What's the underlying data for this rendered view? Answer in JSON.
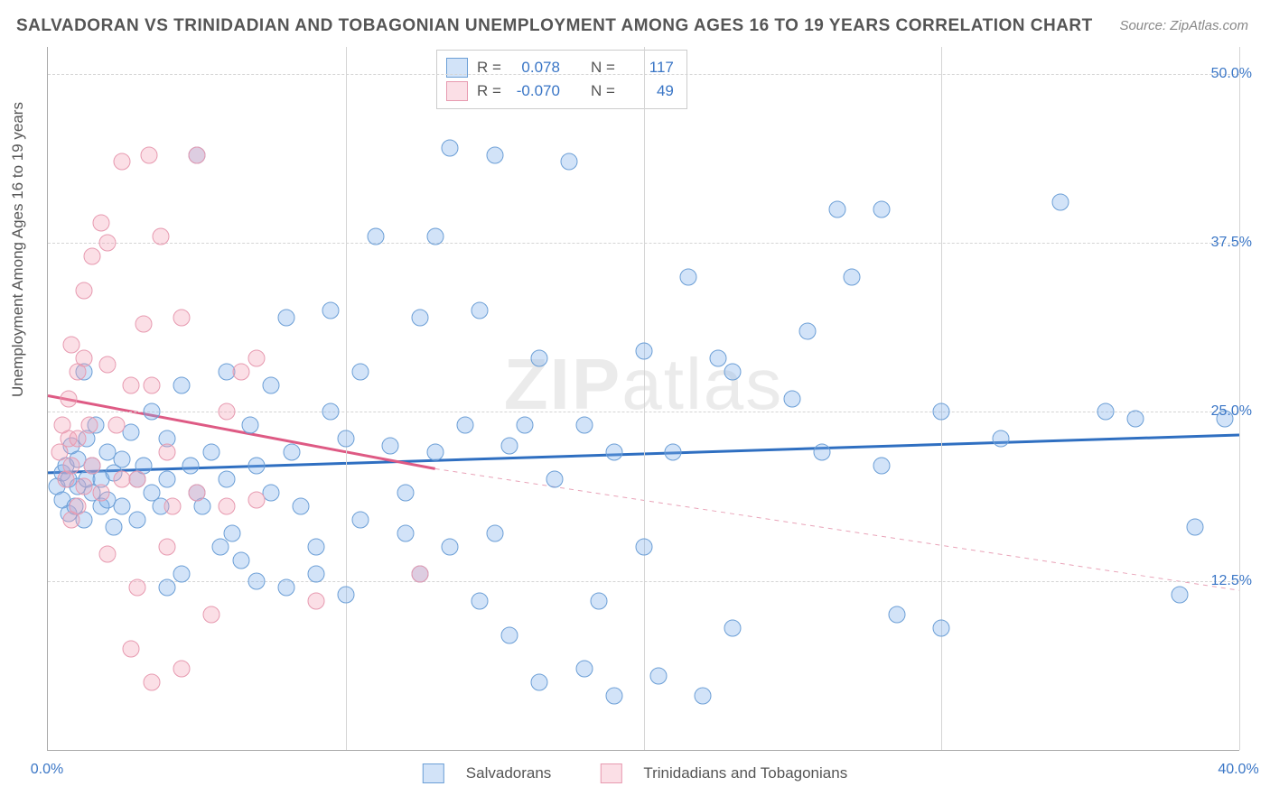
{
  "title": "SALVADORAN VS TRINIDADIAN AND TOBAGONIAN UNEMPLOYMENT AMONG AGES 16 TO 19 YEARS CORRELATION CHART",
  "source": "Source: ZipAtlas.com",
  "ylabel": "Unemployment Among Ages 16 to 19 years",
  "watermark_a": "ZIP",
  "watermark_b": "atlas",
  "chart": {
    "type": "scatter",
    "xlim": [
      0,
      40
    ],
    "ylim": [
      0,
      52
    ],
    "xticks": [
      {
        "v": 0,
        "label": "0.0%"
      },
      {
        "v": 40,
        "label": "40.0%"
      }
    ],
    "xgrid": [
      10,
      20,
      30,
      40
    ],
    "yticks": [
      {
        "v": 12.5,
        "label": "12.5%"
      },
      {
        "v": 25.0,
        "label": "25.0%"
      },
      {
        "v": 37.5,
        "label": "37.5%"
      },
      {
        "v": 50.0,
        "label": "50.0%"
      }
    ],
    "background_color": "#ffffff",
    "grid_color": "#d5d5d5",
    "marker_radius": 9.5,
    "series": [
      {
        "name": "Salvadorans",
        "fill": "rgba(127,176,234,0.35)",
        "stroke": "#6c9fd6",
        "trend": {
          "x1": 0,
          "y1": 20.5,
          "x2": 40,
          "y2": 23.3,
          "color": "#2f6fc1",
          "width": 3,
          "dash": "none"
        },
        "trend_ext": null,
        "R_label": "R =",
        "R": "0.078",
        "N_label": "N =",
        "N": "117",
        "points": [
          [
            0.3,
            19.5
          ],
          [
            0.5,
            20.5
          ],
          [
            0.5,
            18.5
          ],
          [
            0.6,
            21.0
          ],
          [
            0.7,
            17.5
          ],
          [
            0.7,
            20.0
          ],
          [
            0.8,
            22.5
          ],
          [
            0.9,
            18.0
          ],
          [
            1.0,
            19.5
          ],
          [
            1.0,
            21.5
          ],
          [
            1.2,
            17.0
          ],
          [
            1.3,
            20.0
          ],
          [
            1.3,
            23.0
          ],
          [
            1.5,
            19.0
          ],
          [
            1.5,
            21.0
          ],
          [
            1.6,
            24.0
          ],
          [
            1.8,
            18.0
          ],
          [
            1.8,
            20.0
          ],
          [
            2.0,
            22.0
          ],
          [
            1.2,
            28.0
          ],
          [
            2.0,
            18.5
          ],
          [
            2.2,
            20.5
          ],
          [
            2.2,
            16.5
          ],
          [
            2.5,
            21.5
          ],
          [
            2.5,
            18.0
          ],
          [
            2.8,
            23.5
          ],
          [
            3.0,
            20.0
          ],
          [
            3.0,
            17.0
          ],
          [
            3.2,
            21.0
          ],
          [
            3.5,
            25.0
          ],
          [
            3.5,
            19.0
          ],
          [
            3.8,
            18.0
          ],
          [
            4.0,
            23.0
          ],
          [
            4.0,
            20.0
          ],
          [
            4.0,
            12.0
          ],
          [
            4.5,
            13.0
          ],
          [
            4.5,
            27.0
          ],
          [
            4.8,
            21.0
          ],
          [
            5.0,
            19.0
          ],
          [
            5.0,
            44.0
          ],
          [
            5.2,
            18.0
          ],
          [
            5.5,
            22.0
          ],
          [
            5.8,
            15.0
          ],
          [
            6.0,
            28.0
          ],
          [
            6.0,
            20.0
          ],
          [
            6.2,
            16.0
          ],
          [
            6.5,
            14.0
          ],
          [
            6.8,
            24.0
          ],
          [
            7.0,
            12.5
          ],
          [
            7.0,
            21.0
          ],
          [
            7.5,
            27.0
          ],
          [
            7.5,
            19.0
          ],
          [
            8.0,
            12.0
          ],
          [
            8.0,
            32.0
          ],
          [
            8.2,
            22.0
          ],
          [
            8.5,
            18.0
          ],
          [
            9.0,
            13.0
          ],
          [
            9.0,
            15.0
          ],
          [
            9.5,
            32.5
          ],
          [
            9.5,
            25.0
          ],
          [
            10.0,
            23.0
          ],
          [
            10.0,
            11.5
          ],
          [
            10.5,
            17.0
          ],
          [
            10.5,
            28.0
          ],
          [
            11.0,
            38.0
          ],
          [
            11.5,
            22.5
          ],
          [
            12.0,
            19.0
          ],
          [
            12.0,
            16.0
          ],
          [
            12.5,
            13.0
          ],
          [
            12.5,
            32.0
          ],
          [
            13.0,
            22.0
          ],
          [
            13.0,
            38.0
          ],
          [
            13.5,
            15.0
          ],
          [
            13.5,
            44.5
          ],
          [
            14.0,
            24.0
          ],
          [
            14.5,
            11.0
          ],
          [
            14.5,
            32.5
          ],
          [
            15.0,
            44.0
          ],
          [
            15.0,
            16.0
          ],
          [
            15.5,
            22.5
          ],
          [
            15.5,
            8.5
          ],
          [
            16.0,
            24.0
          ],
          [
            16.5,
            29.0
          ],
          [
            16.5,
            5.0
          ],
          [
            17.0,
            20.0
          ],
          [
            17.5,
            43.5
          ],
          [
            18.0,
            6.0
          ],
          [
            18.0,
            24.0
          ],
          [
            18.5,
            11.0
          ],
          [
            19.0,
            22.0
          ],
          [
            19.0,
            4.0
          ],
          [
            20.0,
            15.0
          ],
          [
            20.0,
            29.5
          ],
          [
            20.5,
            5.5
          ],
          [
            21.0,
            22.0
          ],
          [
            21.5,
            35.0
          ],
          [
            22.0,
            4.0
          ],
          [
            22.5,
            29.0
          ],
          [
            23.0,
            28.0
          ],
          [
            23.0,
            9.0
          ],
          [
            25.0,
            26.0
          ],
          [
            25.5,
            31.0
          ],
          [
            26.0,
            22.0
          ],
          [
            26.5,
            40.0
          ],
          [
            27.0,
            35.0
          ],
          [
            28.0,
            40.0
          ],
          [
            28.0,
            21.0
          ],
          [
            28.5,
            10.0
          ],
          [
            30.0,
            25.0
          ],
          [
            30.0,
            9.0
          ],
          [
            32.0,
            23.0
          ],
          [
            34.0,
            40.5
          ],
          [
            35.5,
            25.0
          ],
          [
            36.5,
            24.5
          ],
          [
            38.0,
            11.5
          ],
          [
            38.5,
            16.5
          ],
          [
            39.5,
            24.5
          ]
        ]
      },
      {
        "name": "Trinidadians and Tobagonians",
        "fill": "rgba(244,164,184,0.35)",
        "stroke": "#e79ab0",
        "trend": {
          "x1": 0,
          "y1": 26.2,
          "x2": 13.0,
          "y2": 20.8,
          "color": "#de5a84",
          "width": 3,
          "dash": "none"
        },
        "trend_ext": {
          "x1": 13.0,
          "y1": 20.8,
          "x2": 40,
          "y2": 11.8,
          "color": "#e9a3b8",
          "width": 1,
          "dash": "5,5"
        },
        "R_label": "R =",
        "R": "-0.070",
        "N_label": "N =",
        "N": "49",
        "points": [
          [
            0.4,
            22.0
          ],
          [
            0.5,
            24.0
          ],
          [
            0.6,
            20.0
          ],
          [
            0.7,
            23.0
          ],
          [
            0.7,
            26.0
          ],
          [
            0.8,
            17.0
          ],
          [
            0.8,
            21.0
          ],
          [
            0.8,
            30.0
          ],
          [
            1.0,
            23.0
          ],
          [
            1.0,
            18.0
          ],
          [
            1.0,
            28.0
          ],
          [
            1.2,
            19.5
          ],
          [
            1.2,
            29.0
          ],
          [
            1.2,
            34.0
          ],
          [
            1.4,
            24.0
          ],
          [
            1.5,
            21.0
          ],
          [
            1.5,
            36.5
          ],
          [
            1.8,
            39.0
          ],
          [
            1.8,
            19.0
          ],
          [
            2.0,
            14.5
          ],
          [
            2.0,
            28.5
          ],
          [
            2.0,
            37.5
          ],
          [
            2.3,
            24.0
          ],
          [
            2.5,
            43.5
          ],
          [
            2.5,
            20.0
          ],
          [
            2.8,
            27.0
          ],
          [
            2.8,
            7.5
          ],
          [
            3.0,
            12.0
          ],
          [
            3.0,
            20.0
          ],
          [
            3.2,
            31.5
          ],
          [
            3.4,
            44.0
          ],
          [
            3.5,
            27.0
          ],
          [
            3.5,
            5.0
          ],
          [
            3.8,
            38.0
          ],
          [
            4.0,
            22.0
          ],
          [
            4.0,
            15.0
          ],
          [
            4.2,
            18.0
          ],
          [
            4.5,
            32.0
          ],
          [
            4.5,
            6.0
          ],
          [
            5.0,
            44.0
          ],
          [
            5.0,
            19.0
          ],
          [
            5.5,
            10.0
          ],
          [
            6.0,
            25.0
          ],
          [
            6.0,
            18.0
          ],
          [
            6.5,
            28.0
          ],
          [
            7.0,
            18.5
          ],
          [
            7.0,
            29.0
          ],
          [
            9.0,
            11.0
          ],
          [
            12.5,
            13.0
          ]
        ]
      }
    ]
  },
  "legend": {
    "a_label": "Salvadorans",
    "b_label": "Trinidadians and Tobagonians"
  }
}
